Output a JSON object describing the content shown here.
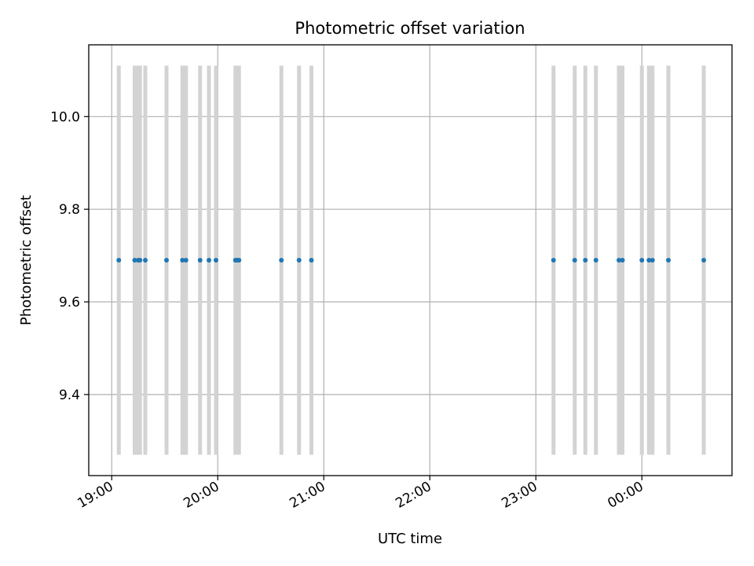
{
  "chart_data": {
    "type": "scatter",
    "title": "Photometric offset variation",
    "xlabel": "UTC time",
    "ylabel": "Photometric offset",
    "x_axis_kind": "time",
    "xlim": [
      "18:47",
      "00:51"
    ],
    "ylim": [
      9.225,
      10.155
    ],
    "grid": true,
    "x_ticks": [
      "19:00",
      "20:00",
      "21:00",
      "22:00",
      "23:00",
      "00:00"
    ],
    "y_ticks": [
      9.4,
      9.6,
      9.8,
      10.0
    ],
    "y_tick_labels": [
      "9.4",
      "9.6",
      "9.8",
      "10.0"
    ],
    "error_low": 9.27,
    "error_high": 10.11,
    "point_color": "#1f77b4",
    "error_bar_color": "#d3d3d3",
    "points": [
      {
        "x": "19:04",
        "y": 9.69
      },
      {
        "x": "19:13",
        "y": 9.69
      },
      {
        "x": "19:15",
        "y": 9.69
      },
      {
        "x": "19:16",
        "y": 9.69
      },
      {
        "x": "19:19",
        "y": 9.69
      },
      {
        "x": "19:31",
        "y": 9.69
      },
      {
        "x": "19:40",
        "y": 9.69
      },
      {
        "x": "19:42",
        "y": 9.69
      },
      {
        "x": "19:50",
        "y": 9.69
      },
      {
        "x": "19:55",
        "y": 9.69
      },
      {
        "x": "19:59",
        "y": 9.69
      },
      {
        "x": "20:10",
        "y": 9.69
      },
      {
        "x": "20:11",
        "y": 9.69
      },
      {
        "x": "20:12",
        "y": 9.69
      },
      {
        "x": "20:36",
        "y": 9.69
      },
      {
        "x": "20:46",
        "y": 9.69
      },
      {
        "x": "20:53",
        "y": 9.69
      },
      {
        "x": "23:10",
        "y": 9.69
      },
      {
        "x": "23:22",
        "y": 9.69
      },
      {
        "x": "23:28",
        "y": 9.69
      },
      {
        "x": "23:34",
        "y": 9.69
      },
      {
        "x": "23:47",
        "y": 9.69
      },
      {
        "x": "23:49",
        "y": 9.69
      },
      {
        "x": "00:00",
        "y": 9.69
      },
      {
        "x": "00:04",
        "y": 9.69
      },
      {
        "x": "00:06",
        "y": 9.69
      },
      {
        "x": "00:15",
        "y": 9.69
      },
      {
        "x": "00:35",
        "y": 9.69
      }
    ]
  }
}
